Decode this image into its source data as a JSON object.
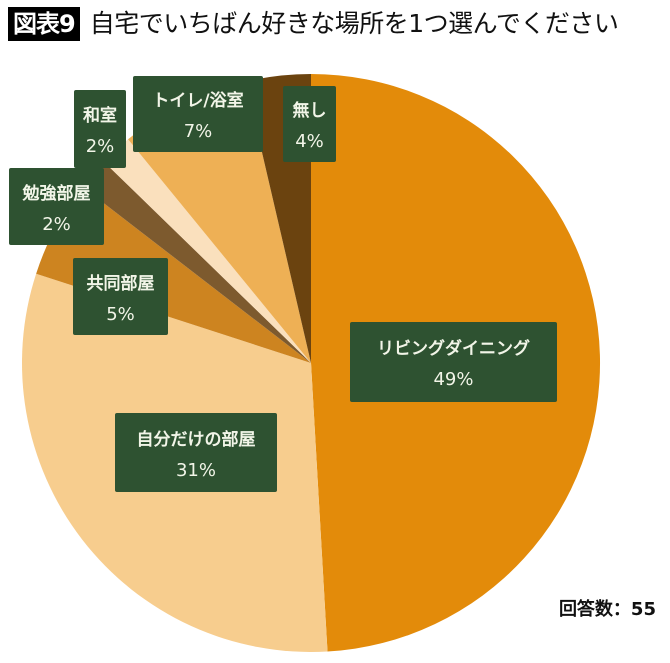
{
  "header": {
    "figure_tag": "図表9",
    "title": "自宅でいちばん好きな場所を1つ選んでください"
  },
  "footer": {
    "respondents_label": "回答数：55"
  },
  "chart_data": {
    "type": "pie",
    "title": "自宅でいちばん好きな場所を1つ選んでください",
    "start_angle": "12 o'clock",
    "direction": "clockwise",
    "total": 55,
    "categories": [
      "リビングダイニング",
      "自分だけの部屋",
      "共同部屋",
      "勉強部屋",
      "和室",
      "トイレ/浴室",
      "無し"
    ],
    "values": [
      49,
      31,
      5,
      2,
      2,
      7,
      4
    ],
    "counts": [
      27,
      17,
      3,
      1,
      1,
      4,
      2
    ],
    "value_labels": [
      "49%",
      "31%",
      "5%",
      "2%",
      "2%",
      "7%",
      "4%"
    ],
    "colors": [
      "#e38b0a",
      "#f7cd8e",
      "#cd8420",
      "#7d5a2e",
      "#fae0bd",
      "#eeb055",
      "#6b430f"
    ],
    "label_box_color": "#2e5231",
    "annotation": "回答数：55"
  },
  "slices": [
    {
      "name": "リビングダイニング",
      "pct": "49%"
    },
    {
      "name": "自分だけの部屋",
      "pct": "31%"
    },
    {
      "name": "共同部屋",
      "pct": "5%"
    },
    {
      "name": "勉強部屋",
      "pct": "2%"
    },
    {
      "name": "和室",
      "pct": "2%"
    },
    {
      "name": "トイレ/浴室",
      "pct": "7%"
    },
    {
      "name": "無し",
      "pct": "4%"
    }
  ]
}
